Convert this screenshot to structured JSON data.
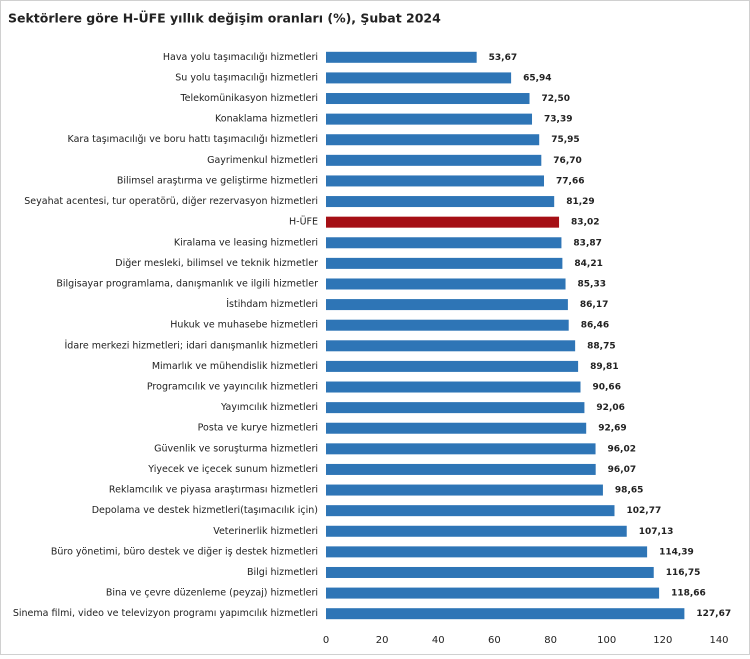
{
  "chart_data": {
    "type": "bar",
    "orientation": "horizontal",
    "title": "Sektörlere göre H-ÜFE yıllık değişim oranları (%), Şubat 2024",
    "categories": [
      "Hava yolu taşımacılığı hizmetleri",
      "Su yolu taşımacılığı hizmetleri",
      "Telekomünikasyon hizmetleri",
      "Konaklama hizmetleri",
      "Kara taşımacılığı ve boru hattı taşımacılığı hizmetleri",
      "Gayrimenkul hizmetleri",
      "Bilimsel araştırma ve geliştirme hizmetleri",
      "Seyahat acentesi, tur operatörü, diğer rezervasyon hizmetleri",
      "H-ÜFE",
      "Kiralama ve leasing hizmetleri",
      "Diğer mesleki, bilimsel ve teknik hizmetler",
      "Bilgisayar programlama, danışmanlık ve ilgili hizmetler",
      "İstihdam hizmetleri",
      "Hukuk ve muhasebe hizmetleri",
      "İdare merkezi hizmetleri; idari danışmanlık hizmetleri",
      "Mimarlık ve mühendislik hizmetleri",
      "Programcılık ve yayıncılık hizmetleri",
      "Yayımcılık hizmetleri",
      "Posta ve kurye hizmetleri",
      "Güvenlik ve soruşturma hizmetleri",
      "Yiyecek ve içecek sunum hizmetleri",
      "Reklamcılık ve piyasa araştırması hizmetleri",
      "Depolama ve destek hizmetleri(taşımacılık için)",
      "Veterinerlik hizmetleri",
      "Büro yönetimi, büro destek ve diğer iş destek hizmetleri",
      "Bilgi hizmetleri",
      "Bina ve çevre düzenleme (peyzaj) hizmetleri",
      "Sinema filmi, video ve televizyon programı yapımcılık hizmetleri"
    ],
    "values": [
      53.67,
      65.94,
      72.5,
      73.39,
      75.95,
      76.7,
      77.66,
      81.29,
      83.02,
      83.87,
      84.21,
      85.33,
      86.17,
      86.46,
      88.75,
      89.81,
      90.66,
      92.06,
      92.69,
      96.02,
      96.07,
      98.65,
      102.77,
      107.13,
      114.39,
      116.75,
      118.66,
      127.67
    ],
    "value_labels": [
      "53,67",
      "65,94",
      "72,50",
      "73,39",
      "75,95",
      "76,70",
      "77,66",
      "81,29",
      "83,02",
      "83,87",
      "84,21",
      "85,33",
      "86,17",
      "86,46",
      "88,75",
      "89,81",
      "90,66",
      "92,06",
      "92,69",
      "96,02",
      "96,07",
      "98,65",
      "102,77",
      "107,13",
      "114,39",
      "116,75",
      "118,66",
      "127,67"
    ],
    "colors": [
      "#2e75b6",
      "#2e75b6",
      "#2e75b6",
      "#2e75b6",
      "#2e75b6",
      "#2e75b6",
      "#2e75b6",
      "#2e75b6",
      "#a50f15",
      "#2e75b6",
      "#2e75b6",
      "#2e75b6",
      "#2e75b6",
      "#2e75b6",
      "#2e75b6",
      "#2e75b6",
      "#2e75b6",
      "#2e75b6",
      "#2e75b6",
      "#2e75b6",
      "#2e75b6",
      "#2e75b6",
      "#2e75b6",
      "#2e75b6",
      "#2e75b6",
      "#2e75b6",
      "#2e75b6",
      "#2e75b6"
    ],
    "xlim": [
      0,
      140
    ],
    "xticks": [
      0,
      20,
      40,
      60,
      80,
      100,
      120,
      140
    ],
    "grid": false
  }
}
